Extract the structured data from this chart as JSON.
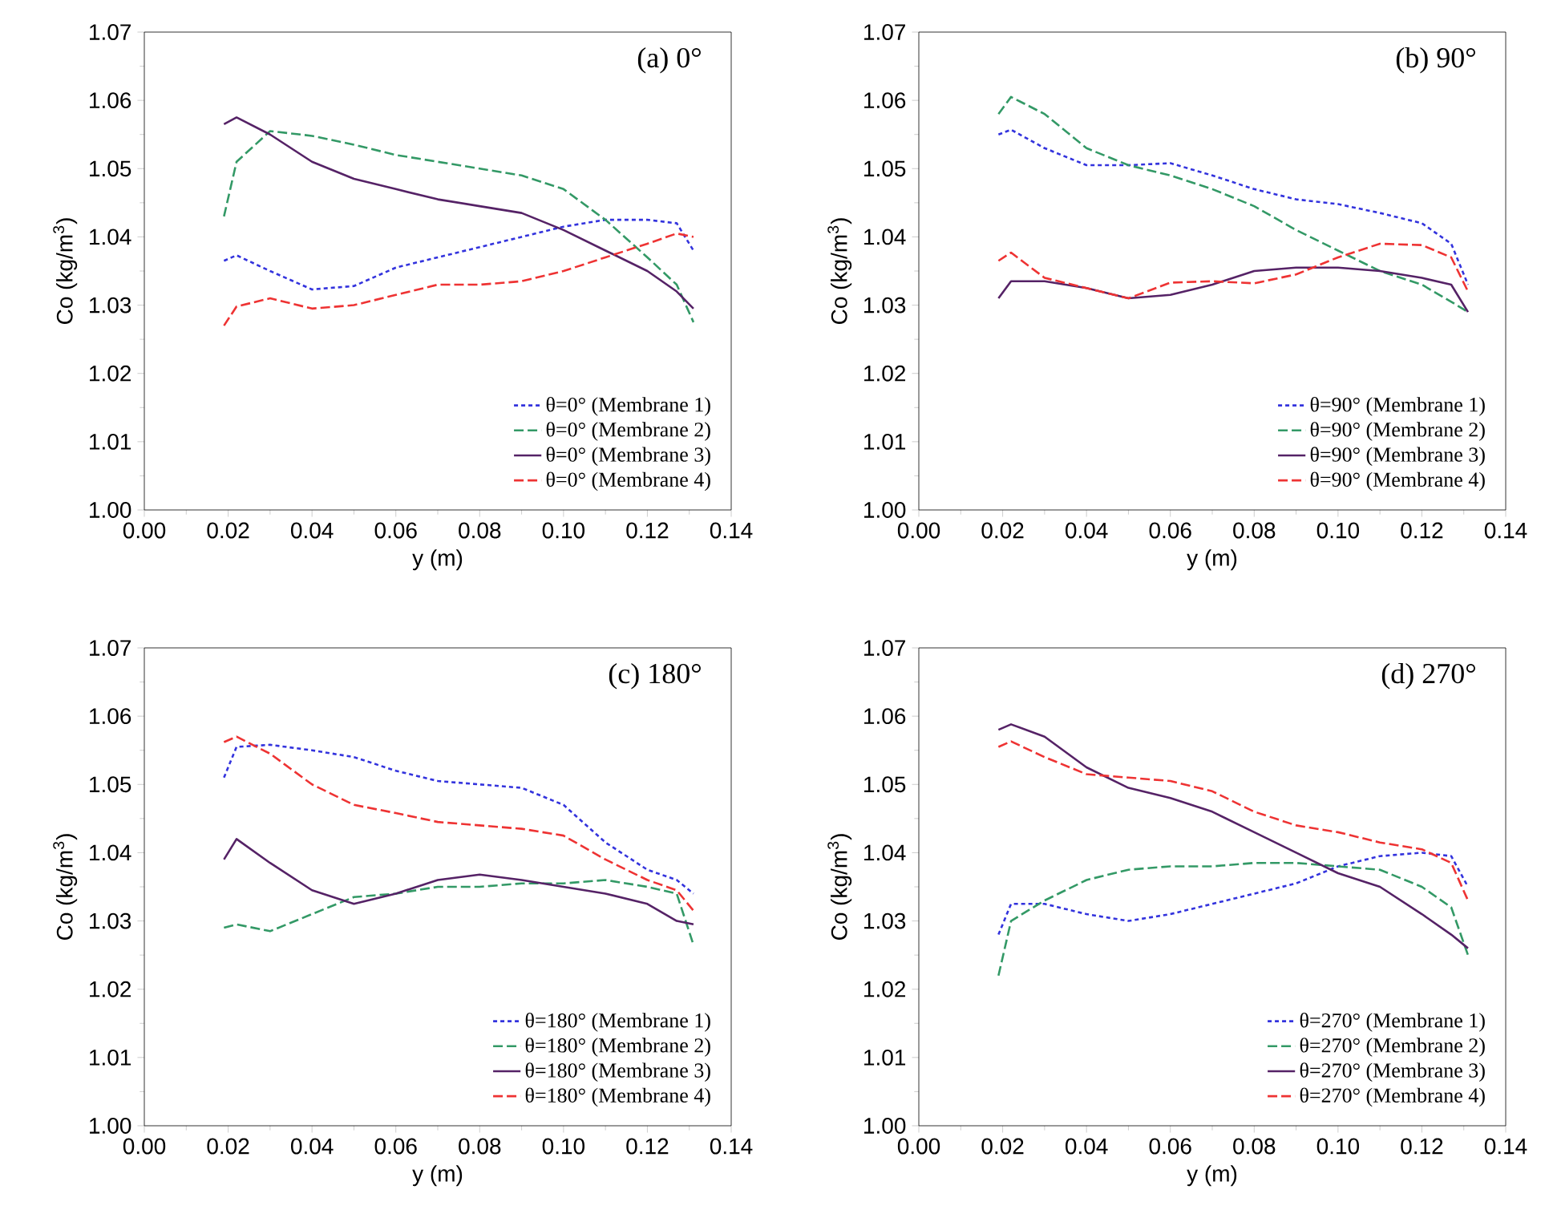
{
  "chart_data": [
    {
      "type": "line",
      "title": "(a) 0°",
      "xlabel": "y (m)",
      "ylabel": "Co (kg/m$^{3}$)",
      "legend": "bottom right",
      "marker": "none",
      "grid": false,
      "xlim": [
        0,
        0.14
      ],
      "ylim": [
        1.0,
        1.07
      ],
      "xticks": [
        {
          "value": 0,
          "label": "0.00"
        },
        {
          "value": 0.02,
          "label": "0.02"
        },
        {
          "value": 0.04,
          "label": "0.04"
        },
        {
          "value": 0.06,
          "label": "0.06"
        },
        {
          "value": 0.08,
          "label": "0.08"
        },
        {
          "value": 0.1,
          "label": "0.10"
        },
        {
          "value": 0.12,
          "label": "0.12"
        },
        {
          "value": 0.14,
          "label": "0.14"
        }
      ],
      "yticks": [
        {
          "value": 1.0,
          "label": "1.00"
        },
        {
          "value": 1.01,
          "label": "1.01"
        },
        {
          "value": 1.02,
          "label": "1.02"
        },
        {
          "value": 1.03,
          "label": "1.03"
        },
        {
          "value": 1.04,
          "label": "1.04"
        },
        {
          "value": 1.05,
          "label": "1.05"
        },
        {
          "value": 1.06,
          "label": "1.06"
        },
        {
          "value": 1.07,
          "label": "1.07"
        }
      ],
      "x": [
        0.019,
        0.022,
        0.03,
        0.04,
        0.05,
        0.06,
        0.07,
        0.08,
        0.09,
        0.1,
        0.11,
        0.12,
        0.127,
        0.131
      ],
      "series": [
        {
          "name": "θ=0° (Membrane 1)",
          "color": "#3333dd",
          "line_style": "dotted",
          "values": [
            1.0365,
            1.0373,
            1.035,
            1.0323,
            1.0328,
            1.0355,
            1.037,
            1.0385,
            1.04,
            1.0415,
            1.0425,
            1.0425,
            1.042,
            1.038
          ]
        },
        {
          "name": "θ=0° (Membrane 2)",
          "color": "#339966",
          "line_style": "dashed",
          "values": [
            1.043,
            1.051,
            1.0555,
            1.0548,
            1.0535,
            1.052,
            1.051,
            1.05,
            1.049,
            1.047,
            1.0425,
            1.037,
            1.033,
            1.0275
          ]
        },
        {
          "name": "θ=0° (Membrane 3)",
          "color": "#552266",
          "line_style": "solid",
          "values": [
            1.0565,
            1.0575,
            1.055,
            1.051,
            1.0485,
            1.047,
            1.0455,
            1.0445,
            1.0435,
            1.041,
            1.038,
            1.035,
            1.032,
            1.0295
          ]
        },
        {
          "name": "θ=0° (Membrane 4)",
          "color": "#ee3333",
          "line_style": "dashed",
          "values": [
            1.027,
            1.0298,
            1.031,
            1.0295,
            1.03,
            1.0315,
            1.033,
            1.033,
            1.0335,
            1.035,
            1.037,
            1.039,
            1.0405,
            1.04
          ]
        }
      ]
    },
    {
      "type": "line",
      "title": "(b) 90°",
      "xlabel": "y (m)",
      "ylabel": "Co (kg/m$^{3}$)",
      "legend": "bottom right",
      "marker": "none",
      "grid": false,
      "xlim": [
        0,
        0.14
      ],
      "ylim": [
        1.0,
        1.07
      ],
      "xticks": [
        {
          "value": 0,
          "label": "0.00"
        },
        {
          "value": 0.02,
          "label": "0.02"
        },
        {
          "value": 0.04,
          "label": "0.04"
        },
        {
          "value": 0.06,
          "label": "0.06"
        },
        {
          "value": 0.08,
          "label": "0.08"
        },
        {
          "value": 0.1,
          "label": "0.10"
        },
        {
          "value": 0.12,
          "label": "0.12"
        },
        {
          "value": 0.14,
          "label": "0.14"
        }
      ],
      "yticks": [
        {
          "value": 1.0,
          "label": "1.00"
        },
        {
          "value": 1.01,
          "label": "1.01"
        },
        {
          "value": 1.02,
          "label": "1.02"
        },
        {
          "value": 1.03,
          "label": "1.03"
        },
        {
          "value": 1.04,
          "label": "1.04"
        },
        {
          "value": 1.05,
          "label": "1.05"
        },
        {
          "value": 1.06,
          "label": "1.06"
        },
        {
          "value": 1.07,
          "label": "1.07"
        }
      ],
      "x": [
        0.019,
        0.022,
        0.03,
        0.04,
        0.05,
        0.06,
        0.07,
        0.08,
        0.09,
        0.1,
        0.11,
        0.12,
        0.127,
        0.131
      ],
      "series": [
        {
          "name": "θ=90° (Membrane 1)",
          "color": "#3333dd",
          "line_style": "dotted",
          "values": [
            1.055,
            1.0557,
            1.053,
            1.0505,
            1.0505,
            1.0508,
            1.049,
            1.047,
            1.0455,
            1.0448,
            1.0435,
            1.042,
            1.039,
            1.033
          ]
        },
        {
          "name": "θ=90° (Membrane 2)",
          "color": "#339966",
          "line_style": "dashed",
          "values": [
            1.058,
            1.0605,
            1.058,
            1.053,
            1.0505,
            1.049,
            1.047,
            1.0445,
            1.041,
            1.038,
            1.035,
            1.033,
            1.0305,
            1.029
          ]
        },
        {
          "name": "θ=90° (Membrane 3)",
          "color": "#552266",
          "line_style": "solid",
          "values": [
            1.031,
            1.0335,
            1.0335,
            1.0325,
            1.031,
            1.0315,
            1.033,
            1.035,
            1.0355,
            1.0355,
            1.035,
            1.034,
            1.033,
            1.029
          ]
        },
        {
          "name": "θ=90° (Membrane 4)",
          "color": "#ee3333",
          "line_style": "dashed",
          "values": [
            1.0365,
            1.0377,
            1.034,
            1.0325,
            1.031,
            1.0333,
            1.0335,
            1.0332,
            1.0345,
            1.037,
            1.039,
            1.0388,
            1.037,
            1.032
          ]
        }
      ]
    },
    {
      "type": "line",
      "title": "(c) 180°",
      "xlabel": "y (m)",
      "ylabel": "Co (kg/m$^{3}$)",
      "legend": "bottom right",
      "marker": "none",
      "grid": false,
      "xlim": [
        0,
        0.14
      ],
      "ylim": [
        1.0,
        1.07
      ],
      "xticks": [
        {
          "value": 0,
          "label": "0.00"
        },
        {
          "value": 0.02,
          "label": "0.02"
        },
        {
          "value": 0.04,
          "label": "0.04"
        },
        {
          "value": 0.06,
          "label": "0.06"
        },
        {
          "value": 0.08,
          "label": "0.08"
        },
        {
          "value": 0.1,
          "label": "0.10"
        },
        {
          "value": 0.12,
          "label": "0.12"
        },
        {
          "value": 0.14,
          "label": "0.14"
        }
      ],
      "yticks": [
        {
          "value": 1.0,
          "label": "1.00"
        },
        {
          "value": 1.01,
          "label": "1.01"
        },
        {
          "value": 1.02,
          "label": "1.02"
        },
        {
          "value": 1.03,
          "label": "1.03"
        },
        {
          "value": 1.04,
          "label": "1.04"
        },
        {
          "value": 1.05,
          "label": "1.05"
        },
        {
          "value": 1.06,
          "label": "1.06"
        },
        {
          "value": 1.07,
          "label": "1.07"
        }
      ],
      "x": [
        0.019,
        0.022,
        0.03,
        0.04,
        0.05,
        0.06,
        0.07,
        0.08,
        0.09,
        0.1,
        0.11,
        0.12,
        0.127,
        0.131
      ],
      "series": [
        {
          "name": "θ=180° (Membrane 1)",
          "color": "#3333dd",
          "line_style": "dotted",
          "values": [
            1.051,
            1.0555,
            1.0558,
            1.055,
            1.054,
            1.052,
            1.0505,
            1.05,
            1.0495,
            1.047,
            1.0415,
            1.0375,
            1.036,
            1.034
          ]
        },
        {
          "name": "θ=180° (Membrane 2)",
          "color": "#339966",
          "line_style": "dashed",
          "values": [
            1.029,
            1.0295,
            1.0285,
            1.031,
            1.0335,
            1.034,
            1.035,
            1.035,
            1.0355,
            1.0355,
            1.036,
            1.035,
            1.034,
            1.0265
          ]
        },
        {
          "name": "θ=180° (Membrane 3)",
          "color": "#552266",
          "line_style": "solid",
          "values": [
            1.039,
            1.042,
            1.0385,
            1.0345,
            1.0325,
            1.034,
            1.036,
            1.0368,
            1.036,
            1.035,
            1.034,
            1.0325,
            1.03,
            1.0295
          ]
        },
        {
          "name": "θ=180° (Membrane 4)",
          "color": "#ee3333",
          "line_style": "dashed",
          "values": [
            1.0562,
            1.057,
            1.0545,
            1.05,
            1.047,
            1.0458,
            1.0445,
            1.044,
            1.0435,
            1.0425,
            1.039,
            1.036,
            1.0345,
            1.0315
          ]
        }
      ]
    },
    {
      "type": "line",
      "title": "(d) 270°",
      "xlabel": "y (m)",
      "ylabel": "Co (kg/m$^{3}$)",
      "legend": "bottom right",
      "marker": "none",
      "grid": false,
      "xlim": [
        0,
        0.14
      ],
      "ylim": [
        1.0,
        1.07
      ],
      "xticks": [
        {
          "value": 0,
          "label": "0.00"
        },
        {
          "value": 0.02,
          "label": "0.02"
        },
        {
          "value": 0.04,
          "label": "0.04"
        },
        {
          "value": 0.06,
          "label": "0.06"
        },
        {
          "value": 0.08,
          "label": "0.08"
        },
        {
          "value": 0.1,
          "label": "0.10"
        },
        {
          "value": 0.12,
          "label": "0.12"
        },
        {
          "value": 0.14,
          "label": "0.14"
        }
      ],
      "yticks": [
        {
          "value": 1.0,
          "label": "1.00"
        },
        {
          "value": 1.01,
          "label": "1.01"
        },
        {
          "value": 1.02,
          "label": "1.02"
        },
        {
          "value": 1.03,
          "label": "1.03"
        },
        {
          "value": 1.04,
          "label": "1.04"
        },
        {
          "value": 1.05,
          "label": "1.05"
        },
        {
          "value": 1.06,
          "label": "1.06"
        },
        {
          "value": 1.07,
          "label": "1.07"
        }
      ],
      "x": [
        0.019,
        0.022,
        0.03,
        0.04,
        0.05,
        0.06,
        0.07,
        0.08,
        0.09,
        0.1,
        0.11,
        0.12,
        0.127,
        0.131
      ],
      "series": [
        {
          "name": "θ=270° (Membrane 1)",
          "color": "#3333dd",
          "line_style": "dotted",
          "values": [
            1.028,
            1.0325,
            1.0325,
            1.031,
            1.03,
            1.031,
            1.0325,
            1.034,
            1.0355,
            1.038,
            1.0395,
            1.04,
            1.0395,
            1.035
          ]
        },
        {
          "name": "θ=270° (Membrane 2)",
          "color": "#339966",
          "line_style": "dashed",
          "values": [
            1.022,
            1.03,
            1.033,
            1.036,
            1.0375,
            1.038,
            1.038,
            1.0385,
            1.0385,
            1.038,
            1.0375,
            1.035,
            1.032,
            1.025
          ]
        },
        {
          "name": "θ=270° (Membrane 3)",
          "color": "#552266",
          "line_style": "solid",
          "values": [
            1.058,
            1.0588,
            1.057,
            1.0525,
            1.0495,
            1.048,
            1.046,
            1.043,
            1.04,
            1.037,
            1.035,
            1.031,
            1.028,
            1.026
          ]
        },
        {
          "name": "θ=270° (Membrane 4)",
          "color": "#ee3333",
          "line_style": "dashed",
          "values": [
            1.0555,
            1.0563,
            1.054,
            1.0515,
            1.051,
            1.0505,
            1.049,
            1.046,
            1.044,
            1.043,
            1.0415,
            1.0405,
            1.0385,
            1.033
          ]
        }
      ]
    }
  ]
}
